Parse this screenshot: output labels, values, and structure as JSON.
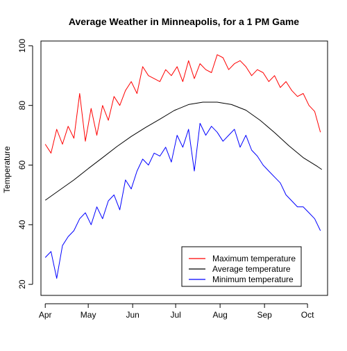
{
  "chart_data": {
    "type": "line",
    "title": "Average Weather in Minneapolis, for a 1 PM Game",
    "xlabel": "",
    "ylabel": "Temperature",
    "x_unit": "day of season (Apr 1 = 0)",
    "xlim": [
      -3,
      197
    ],
    "ylim": [
      16.3,
      101.6
    ],
    "x_ticks": [
      {
        "label": "Apr",
        "value": 0
      },
      {
        "label": "May",
        "value": 30
      },
      {
        "label": "Jun",
        "value": 61
      },
      {
        "label": "Jul",
        "value": 91
      },
      {
        "label": "Aug",
        "value": 122
      },
      {
        "label": "Sep",
        "value": 153
      },
      {
        "label": "Oct",
        "value": 183
      }
    ],
    "y_ticks": [
      20,
      40,
      60,
      80,
      100
    ],
    "legend": {
      "position": "bottom-right",
      "entries": [
        {
          "label": "Maximum temperature",
          "color": "#ff0000"
        },
        {
          "label": "Average temperature",
          "color": "#000000"
        },
        {
          "label": "Minimum temperature",
          "color": "#0000ff"
        }
      ]
    },
    "series": [
      {
        "name": "Maximum temperature",
        "color": "#ff0000",
        "x": [
          0,
          4,
          8,
          12,
          16,
          20,
          24,
          28,
          32,
          36,
          40,
          44,
          48,
          52,
          56,
          60,
          64,
          68,
          72,
          76,
          80,
          84,
          88,
          92,
          96,
          100,
          104,
          108,
          112,
          116,
          120,
          124,
          128,
          132,
          136,
          140,
          144,
          148,
          152,
          156,
          160,
          164,
          168,
          172,
          176,
          180,
          184,
          188,
          192
        ],
        "values": [
          67,
          64,
          72,
          67,
          73,
          69,
          84,
          68,
          79,
          70,
          80,
          75,
          83,
          80,
          85,
          88,
          84,
          93,
          90,
          89,
          88,
          92,
          90,
          93,
          88,
          95,
          89,
          94,
          92,
          91,
          97,
          96,
          92,
          94,
          95,
          93,
          90,
          92,
          91,
          88,
          90,
          86,
          88,
          85,
          83,
          84,
          80,
          78,
          71
        ]
      },
      {
        "name": "Average temperature",
        "color": "#000000",
        "x": [
          0,
          10,
          20,
          30,
          40,
          50,
          60,
          70,
          80,
          90,
          100,
          110,
          120,
          130,
          140,
          150,
          160,
          170,
          180,
          190,
          193
        ],
        "values": [
          48.2,
          51.6,
          55.0,
          58.8,
          62.5,
          66.2,
          69.6,
          72.6,
          75.4,
          78.3,
          80.3,
          81.1,
          81.1,
          80.3,
          78.4,
          75.0,
          70.9,
          66.5,
          62.5,
          59.5,
          58.5
        ]
      },
      {
        "name": "Minimum temperature",
        "color": "#0000ff",
        "x": [
          0,
          4,
          8,
          12,
          16,
          20,
          24,
          28,
          32,
          36,
          40,
          44,
          48,
          52,
          56,
          60,
          64,
          68,
          72,
          76,
          80,
          84,
          88,
          92,
          96,
          100,
          104,
          108,
          112,
          116,
          120,
          124,
          128,
          132,
          136,
          140,
          144,
          148,
          152,
          156,
          160,
          164,
          168,
          172,
          176,
          180,
          184,
          188,
          192
        ],
        "values": [
          29,
          31,
          22,
          33,
          36,
          38,
          42,
          44,
          40,
          46,
          42,
          48,
          50,
          45,
          55,
          52,
          58,
          62,
          60,
          64,
          63,
          66,
          61,
          70,
          66,
          72,
          58,
          74,
          70,
          73,
          71,
          68,
          70,
          72,
          66,
          70,
          65,
          63,
          60,
          58,
          56,
          54,
          50,
          48,
          46,
          46,
          44,
          42,
          38
        ]
      }
    ]
  }
}
